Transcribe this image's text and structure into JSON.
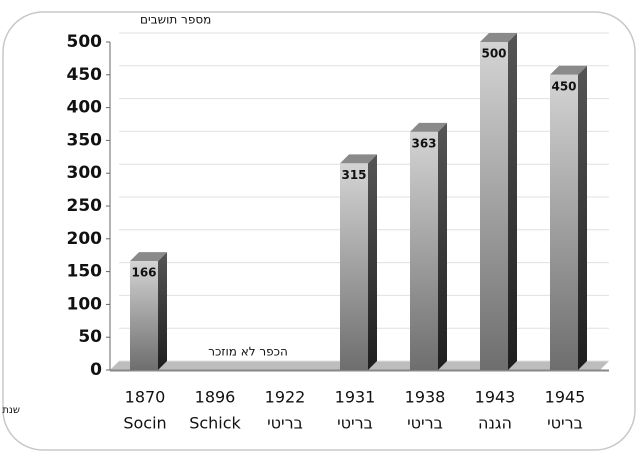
{
  "chart_data": {
    "type": "bar3d",
    "y_axis_label": "מספר תושבים",
    "x_axis_label": "שנת מפקד/אומדן",
    "annotation": "הכפר לא מוזכר",
    "categories": [
      "1870",
      "1896",
      "1922",
      "1931",
      "1938",
      "1943",
      "1945"
    ],
    "sources": [
      "Socin",
      "Schick",
      "בריטי",
      "בריטי",
      "בריטי",
      "הגנה",
      "בריטי"
    ],
    "values": [
      166,
      null,
      null,
      315,
      363,
      500,
      450
    ],
    "ylim": [
      0,
      500
    ],
    "yticks": [
      0,
      50,
      100,
      150,
      200,
      250,
      300,
      350,
      400,
      450,
      500
    ],
    "grid": true,
    "color": "#9a9a9a"
  }
}
